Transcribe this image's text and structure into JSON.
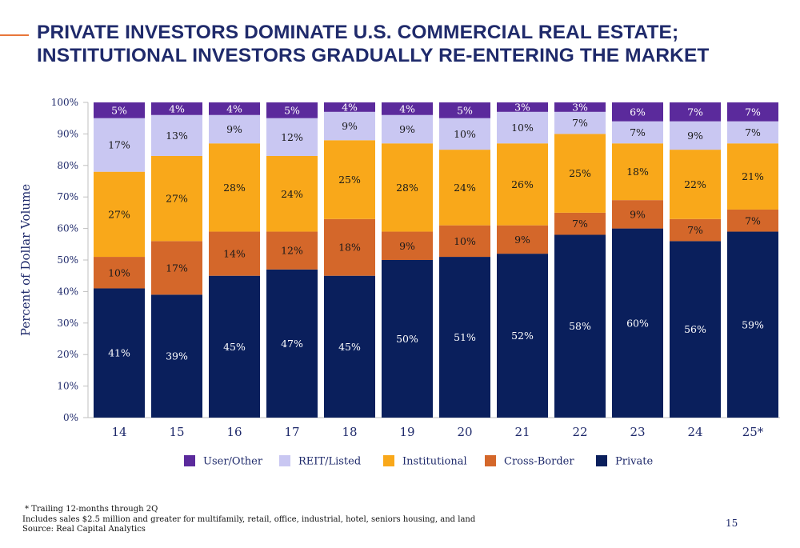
{
  "title": {
    "line1": "PRIVATE INVESTORS DOMINATE U.S. COMMERCIAL REAL ESTATE;",
    "line2": "INSTITUTIONAL INVESTORS GRADUALLY RE-ENTERING THE MARKET"
  },
  "chart_data": {
    "type": "bar",
    "stacked": true,
    "categories": [
      "14",
      "15",
      "16",
      "17",
      "18",
      "19",
      "20",
      "21",
      "22",
      "23",
      "24",
      "25*"
    ],
    "ylabel": "Percent of Dollar Volume",
    "ylim": [
      0,
      100
    ],
    "yticks": [
      "0%",
      "10%",
      "20%",
      "30%",
      "40%",
      "50%",
      "60%",
      "70%",
      "80%",
      "90%",
      "100%"
    ],
    "grid": false,
    "legend_position": "bottom",
    "series": [
      {
        "name": "Private",
        "color": "#0a1f5c",
        "label_color": "#ffffff",
        "values": [
          41,
          39,
          45,
          47,
          45,
          50,
          51,
          52,
          58,
          60,
          56,
          59
        ],
        "labels": [
          "41%",
          "39%",
          "45%",
          "47%",
          "45%",
          "50%",
          "51%",
          "52%",
          "58%",
          "60%",
          "56%",
          "59%"
        ]
      },
      {
        "name": "Cross-Border",
        "color": "#d4672a",
        "label_color": "#1a1a1a",
        "values": [
          10,
          17,
          14,
          12,
          18,
          9,
          10,
          9,
          7,
          9,
          7,
          7
        ],
        "labels": [
          "10%",
          "17%",
          "14%",
          "12%",
          "18%",
          "9%",
          "10%",
          "9%",
          "7%",
          "9%",
          "7%",
          "7%"
        ]
      },
      {
        "name": "Institutional",
        "color": "#f9a81a",
        "label_color": "#1a1a1a",
        "values": [
          27,
          27,
          28,
          24,
          25,
          28,
          24,
          26,
          25,
          18,
          22,
          21
        ],
        "labels": [
          "27%",
          "27%",
          "28%",
          "24%",
          "25%",
          "28%",
          "24%",
          "26%",
          "25%",
          "18%",
          "22%",
          "21%"
        ]
      },
      {
        "name": "REIT/Listed",
        "color": "#c9c7f2",
        "label_color": "#1a1a1a",
        "values": [
          17,
          13,
          9,
          12,
          9,
          9,
          10,
          10,
          7,
          7,
          9,
          7
        ],
        "labels": [
          "17%",
          "13%",
          "9%",
          "12%",
          "9%",
          "9%",
          "10%",
          "10%",
          "7%",
          "7%",
          "9%",
          "7%"
        ]
      },
      {
        "name": "User/Other",
        "color": "#5b2a9c",
        "label_color": "#ffffff",
        "values": [
          5,
          4,
          4,
          5,
          4,
          4,
          5,
          3,
          3,
          6,
          7,
          7
        ],
        "labels": [
          "5%",
          "4%",
          "4%",
          "5%",
          "4%",
          "4%",
          "5%",
          "3%",
          "3%",
          "6%",
          "7%",
          "7%"
        ]
      }
    ],
    "legend_order": [
      "User/Other",
      "REIT/Listed",
      "Institutional",
      "Cross-Border",
      "Private"
    ]
  },
  "footnotes": {
    "trailing": "* Trailing 12-months through 2Q",
    "includes": "Includes sales $2.5 million and greater for multifamily, retail, office, industrial, hotel, seniors housing, and land",
    "source": "Source: Real Capital Analytics"
  },
  "page_number": "15",
  "colors": {
    "title": "#1f2a6b",
    "accent_line": "#e8763a",
    "axis_text": "#1f2a6b"
  }
}
